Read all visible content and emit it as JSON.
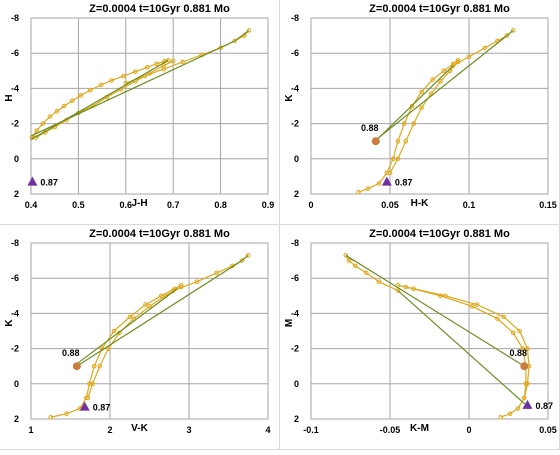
{
  "colors": {
    "curve": "#e0a81a",
    "line": "#6b8e23",
    "grid": "#a6a6a6",
    "triangle": "#7030a0",
    "marker88": "#c87d3c",
    "text": "#000000"
  },
  "chart_data": [
    {
      "type": "scatter",
      "title": "Z=0.0004  t=10Gyr  0.881 Mo",
      "xlabel": "J-H",
      "ylabel": "H",
      "xlim": [
        0.4,
        0.9
      ],
      "ylim": [
        2,
        -8
      ],
      "xticks": [
        "0.4",
        "0.5",
        "0.6",
        "0.7",
        "0.8",
        "0.9"
      ],
      "yticks": [
        "2",
        "0",
        "-2",
        "-4",
        "-6",
        "-8"
      ],
      "xtick_values": [
        0.4,
        0.5,
        0.6,
        0.7,
        0.8,
        0.9
      ],
      "ytick_values": [
        2,
        0,
        -2,
        -4,
        -6,
        -8
      ],
      "grid": true,
      "series": [
        {
          "role": "isochrone-curve",
          "x": [
            0.402,
            0.412,
            0.425,
            0.44,
            0.455,
            0.47,
            0.487,
            0.505,
            0.525,
            0.548,
            0.57,
            0.595,
            0.62,
            0.645,
            0.665,
            0.682,
            0.69
          ],
          "y": [
            -1.2,
            -1.6,
            -2.0,
            -2.4,
            -2.7,
            -3.0,
            -3.3,
            -3.6,
            -3.9,
            -4.2,
            -4.45,
            -4.7,
            -4.95,
            -5.2,
            -5.4,
            -5.55,
            -5.6
          ]
        },
        {
          "role": "isochrone-curve",
          "x": [
            0.41,
            0.43,
            0.45,
            0.475,
            0.5,
            0.53,
            0.56,
            0.59,
            0.62,
            0.65,
            0.68,
            0.7
          ],
          "y": [
            -1.2,
            -1.5,
            -1.8,
            -2.2,
            -2.6,
            -3.0,
            -3.5,
            -3.95,
            -4.4,
            -4.85,
            -5.3,
            -5.55
          ]
        },
        {
          "role": "isochrone-curve",
          "x": [
            0.6,
            0.64,
            0.68,
            0.72,
            0.76,
            0.8,
            0.83,
            0.85,
            0.86
          ],
          "y": [
            -4.3,
            -4.7,
            -5.1,
            -5.5,
            -5.9,
            -6.3,
            -6.7,
            -7.0,
            -7.3
          ]
        },
        {
          "role": "connecting-line",
          "x": [
            0.4,
            0.83,
            0.86
          ],
          "y": [
            -1.3,
            -6.7,
            -7.3
          ]
        },
        {
          "role": "connecting-line",
          "x": [
            0.4,
            0.69
          ],
          "y": [
            -1.1,
            -5.6
          ]
        }
      ],
      "markers": [
        {
          "shape": "triangle",
          "x": 0.403,
          "y": 1.3,
          "label": "0.87"
        }
      ]
    },
    {
      "type": "scatter",
      "title": "Z=0.0004  t=10Gyr  0.881 Mo",
      "xlabel": "H-K",
      "ylabel": "K",
      "xlim": [
        0,
        0.15
      ],
      "ylim": [
        2,
        -8
      ],
      "xticks": [
        "0",
        "0.05",
        "0.1",
        "0.15"
      ],
      "yticks": [
        "2",
        "0",
        "-2",
        "-4",
        "-6",
        "-8"
      ],
      "xtick_values": [
        0,
        0.05,
        0.1,
        0.15
      ],
      "ytick_values": [
        2,
        0,
        -2,
        -4,
        -6,
        -8
      ],
      "grid": true,
      "series": [
        {
          "role": "isochrone-curve",
          "x": [
            0.03,
            0.036,
            0.043,
            0.048,
            0.052,
            0.055,
            0.059,
            0.064,
            0.07,
            0.077,
            0.084,
            0.09,
            0.093
          ],
          "y": [
            1.9,
            1.7,
            1.4,
            0.8,
            0.0,
            -1.0,
            -2.0,
            -3.0,
            -3.8,
            -4.5,
            -5.0,
            -5.4,
            -5.6
          ]
        },
        {
          "role": "isochrone-curve",
          "x": [
            0.05,
            0.055,
            0.06,
            0.065,
            0.07,
            0.076,
            0.082,
            0.088,
            0.093
          ],
          "y": [
            0.8,
            0.0,
            -1.0,
            -2.0,
            -2.9,
            -3.7,
            -4.4,
            -5.0,
            -5.5
          ]
        },
        {
          "role": "isochrone-curve",
          "x": [
            0.09,
            0.1,
            0.11,
            0.118,
            0.124,
            0.128
          ],
          "y": [
            -5.3,
            -5.8,
            -6.3,
            -6.7,
            -7.0,
            -7.3
          ]
        },
        {
          "role": "connecting-line",
          "x": [
            0.04,
            0.124,
            0.128
          ],
          "y": [
            -1.0,
            -7.0,
            -7.3
          ]
        },
        {
          "role": "connecting-line",
          "x": [
            0.043,
            0.09
          ],
          "y": [
            -1.2,
            -5.3
          ]
        }
      ],
      "markers": [
        {
          "shape": "circle",
          "x": 0.041,
          "y": -1.0,
          "label": "0.88"
        },
        {
          "shape": "triangle",
          "x": 0.048,
          "y": 1.3,
          "label": "0.87"
        }
      ]
    },
    {
      "type": "scatter",
      "title": "Z=0.0004  t=10Gyr  0.881 Mo",
      "xlabel": "V-K",
      "ylabel": "K",
      "xlim": [
        1,
        4
      ],
      "ylim": [
        2,
        -8
      ],
      "xticks": [
        "1",
        "2",
        "3",
        "4"
      ],
      "yticks": [
        "2",
        "0",
        "-2",
        "-4",
        "-6",
        "-8"
      ],
      "xtick_values": [
        1,
        2,
        3,
        4
      ],
      "ytick_values": [
        2,
        0,
        -2,
        -4,
        -6,
        -8
      ],
      "grid": true,
      "series": [
        {
          "role": "isochrone-curve",
          "x": [
            1.25,
            1.45,
            1.62,
            1.7,
            1.74,
            1.8,
            1.9,
            2.05,
            2.25,
            2.45,
            2.65,
            2.82,
            2.9
          ],
          "y": [
            1.9,
            1.7,
            1.4,
            0.8,
            0.0,
            -1.0,
            -2.0,
            -3.0,
            -3.8,
            -4.5,
            -5.0,
            -5.4,
            -5.6
          ]
        },
        {
          "role": "isochrone-curve",
          "x": [
            1.72,
            1.78,
            1.87,
            1.98,
            2.12,
            2.3,
            2.5,
            2.7,
            2.9
          ],
          "y": [
            0.8,
            0.0,
            -1.0,
            -2.0,
            -2.9,
            -3.7,
            -4.4,
            -5.0,
            -5.5
          ]
        },
        {
          "role": "isochrone-curve",
          "x": [
            2.8,
            3.1,
            3.35,
            3.55,
            3.67,
            3.75
          ],
          "y": [
            -5.3,
            -5.8,
            -6.3,
            -6.7,
            -7.0,
            -7.3
          ]
        },
        {
          "role": "connecting-line",
          "x": [
            1.58,
            3.67,
            3.75
          ],
          "y": [
            -1.0,
            -7.0,
            -7.3
          ]
        },
        {
          "role": "connecting-line",
          "x": [
            1.6,
            2.85
          ],
          "y": [
            -1.2,
            -5.4
          ]
        }
      ],
      "markers": [
        {
          "shape": "circle",
          "x": 1.58,
          "y": -1.0,
          "label": "0.88"
        },
        {
          "shape": "triangle",
          "x": 1.68,
          "y": 1.3,
          "label": "0.87"
        }
      ]
    },
    {
      "type": "scatter",
      "title": "Z=0.0004  t=10Gyr  0.881 Mo",
      "xlabel": "K-M",
      "ylabel": "M",
      "xlim": [
        -0.1,
        0.05
      ],
      "ylim": [
        2,
        -8
      ],
      "xticks": [
        "-0.1",
        "-0.05",
        "0",
        "0.05"
      ],
      "yticks": [
        "2",
        "0",
        "-2",
        "-4",
        "-6",
        "-8"
      ],
      "xtick_values": [
        -0.1,
        -0.05,
        0,
        0.05
      ],
      "ytick_values": [
        2,
        0,
        -2,
        -4,
        -6,
        -8
      ],
      "grid": true,
      "series": [
        {
          "role": "isochrone-curve",
          "x": [
            0.02,
            0.026,
            0.031,
            0.035,
            0.037,
            0.038,
            0.037,
            0.032,
            0.022,
            0.005,
            -0.015,
            -0.035,
            -0.045
          ],
          "y": [
            1.9,
            1.7,
            1.4,
            0.8,
            0.0,
            -1.0,
            -2.0,
            -3.0,
            -3.8,
            -4.5,
            -5.0,
            -5.4,
            -5.6
          ]
        },
        {
          "role": "isochrone-curve",
          "x": [
            0.035,
            0.036,
            0.036,
            0.034,
            0.028,
            0.018,
            0.002,
            -0.018,
            -0.04
          ],
          "y": [
            0.8,
            0.0,
            -1.0,
            -2.0,
            -2.9,
            -3.7,
            -4.4,
            -5.0,
            -5.5
          ]
        },
        {
          "role": "isochrone-curve",
          "x": [
            -0.045,
            -0.057,
            -0.065,
            -0.072,
            -0.076,
            -0.078
          ],
          "y": [
            -5.3,
            -5.8,
            -6.3,
            -6.7,
            -7.0,
            -7.3
          ]
        },
        {
          "role": "connecting-line",
          "x": [
            -0.073,
            -0.078,
            0.035
          ],
          "y": [
            -7.0,
            -7.3,
            -1.0
          ]
        },
        {
          "role": "connecting-line",
          "x": [
            -0.045,
            0.036
          ],
          "y": [
            -5.3,
            1.2
          ]
        }
      ],
      "markers": [
        {
          "shape": "circle",
          "x": 0.035,
          "y": -1.0,
          "label": "0.88"
        },
        {
          "shape": "triangle",
          "x": 0.037,
          "y": 1.2,
          "label": "0.87"
        }
      ]
    }
  ]
}
